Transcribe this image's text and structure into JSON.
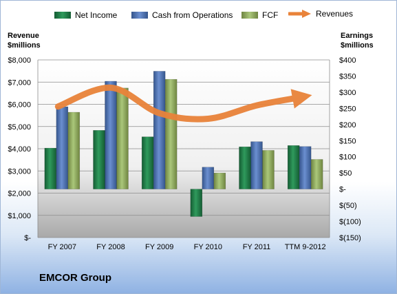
{
  "company": "EMCOR Group",
  "chart_data": {
    "type": "bar",
    "categories": [
      "FY 2007",
      "FY 2008",
      "FY 2009",
      "FY 2010",
      "FY 2011",
      "TTM 9-2012"
    ],
    "left_axis": {
      "title_line1": "Revenue",
      "title_line2": "$millions",
      "ylim": [
        0,
        8000
      ],
      "ticks": [
        "$-",
        "$1,000",
        "$2,000",
        "$3,000",
        "$4,000",
        "$5,000",
        "$6,000",
        "$7,000",
        "$8,000"
      ]
    },
    "right_axis": {
      "title_line1": "Earnings",
      "title_line2": "$millions",
      "ylim": [
        -150,
        400
      ],
      "ticks": [
        "$(150)",
        "$(100)",
        "$(50)",
        "$-",
        "$50",
        "$100",
        "$150",
        "$200",
        "$250",
        "$300",
        "$350",
        "$400"
      ]
    },
    "series": [
      {
        "name": "Net Income",
        "type": "bar",
        "axis": "right",
        "color": "#1f7a45",
        "values": [
          127,
          182,
          162,
          -85,
          131,
          135
        ]
      },
      {
        "name": "Cash from Operations",
        "type": "bar",
        "axis": "right",
        "color": "#4a6fae",
        "values": [
          255,
          334,
          365,
          68,
          147,
          132
        ]
      },
      {
        "name": "FCF",
        "type": "bar",
        "axis": "right",
        "color": "#8ea65a",
        "values": [
          238,
          313,
          340,
          50,
          120,
          92
        ]
      },
      {
        "name": "Revenues",
        "type": "line",
        "axis": "left",
        "color": "#e9833a",
        "values": [
          5900,
          6750,
          5600,
          5350,
          5950,
          6300
        ]
      }
    ],
    "grid": true,
    "legend_position": "top"
  }
}
